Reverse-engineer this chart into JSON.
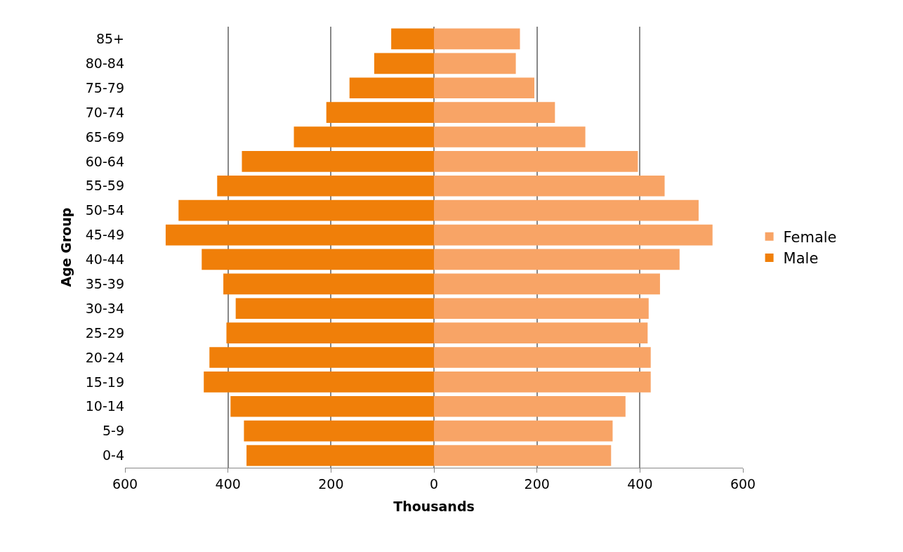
{
  "chart_data": {
    "type": "bar",
    "orientation": "horizontal",
    "xlabel": "Thousands",
    "ylabel": "Age Group",
    "categories": [
      "85+",
      "80-84",
      "75-79",
      "70-74",
      "65-69",
      "60-64",
      "55-59",
      "50-54",
      "45-49",
      "40-44",
      "35-39",
      "30-34",
      "25-29",
      "20-24",
      "15-19",
      "10-14",
      "5-9",
      "0-4"
    ],
    "series": [
      {
        "name": "Male",
        "color": "#f07f09",
        "values": [
          -83,
          -116,
          -164,
          -209,
          -272,
          -373,
          -421,
          -496,
          -521,
          -451,
          -409,
          -385,
          -403,
          -436,
          -447,
          -395,
          -369,
          -364
        ]
      },
      {
        "name": "Female",
        "color": "#f8a466",
        "values": [
          167,
          159,
          195,
          235,
          294,
          396,
          448,
          514,
          541,
          477,
          439,
          417,
          415,
          421,
          421,
          372,
          347,
          344
        ]
      }
    ],
    "xlim": [
      -600,
      600
    ],
    "xticks": [
      {
        "value": -600,
        "label": "600"
      },
      {
        "value": -400,
        "label": "400"
      },
      {
        "value": -200,
        "label": "200"
      },
      0,
      200,
      400,
      600
    ],
    "grid": "x",
    "legend": "right",
    "stacked": true
  }
}
